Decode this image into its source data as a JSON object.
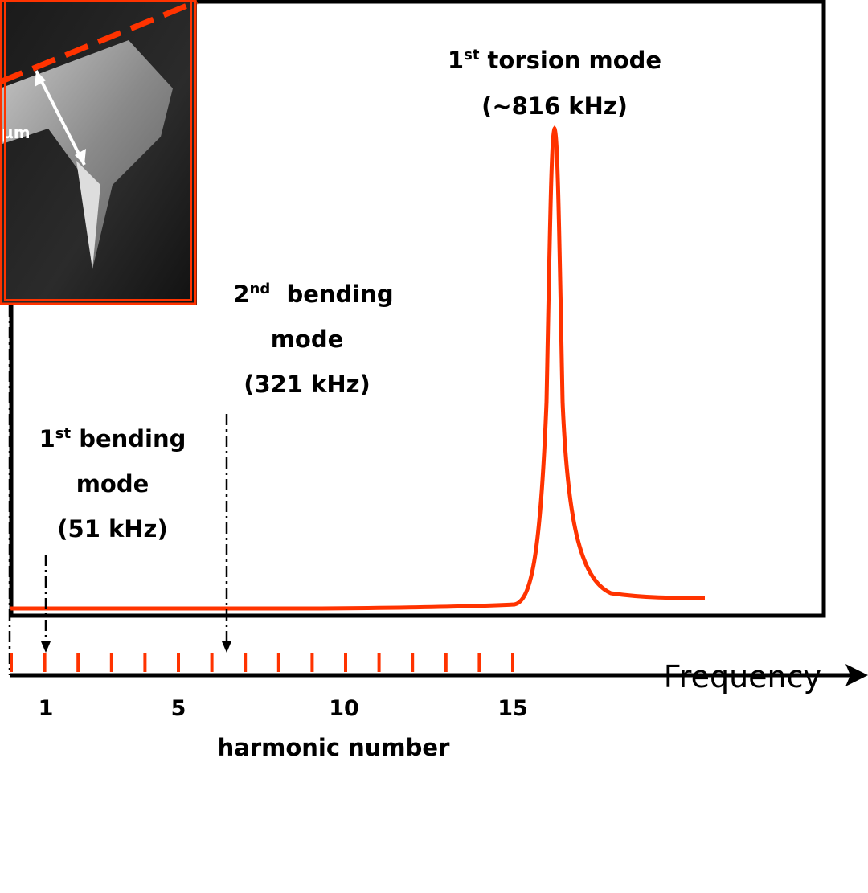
{
  "annotations": {
    "torsion": {
      "num": "1",
      "sup": "st",
      "rest": " torsion mode",
      "freq": "(~816 kHz)"
    },
    "bending2": {
      "num": "2",
      "sup": "nd",
      "rest": "  bending",
      "line2": "mode",
      "freq": "(321 kHz)"
    },
    "bending1": {
      "num": "1",
      "sup": "st",
      "rest": " bending",
      "line2": "mode",
      "freq": "(51 kHz)"
    }
  },
  "inset": {
    "scale_label": "µm"
  },
  "axis": {
    "frequency_label": "Frequency",
    "harmonic_label": "harmonic number",
    "harmonic_ticks": [
      "1",
      "5",
      "10",
      "15"
    ]
  }
}
